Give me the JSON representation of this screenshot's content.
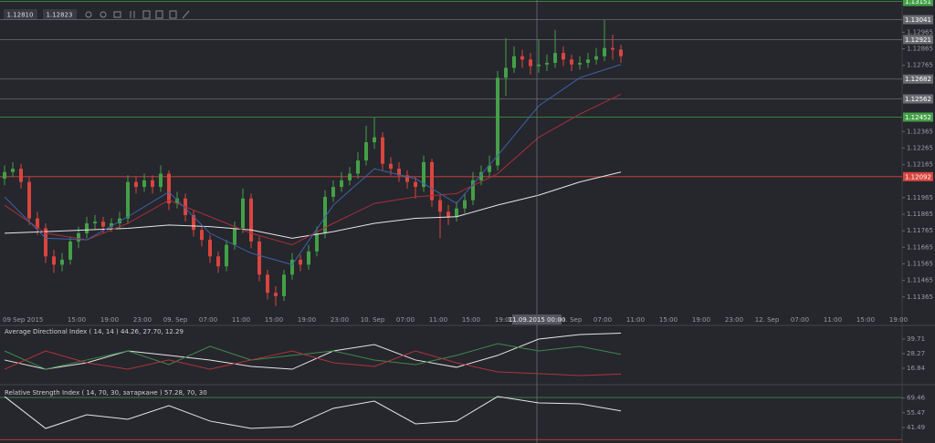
{
  "toolbar": [
    "1.12810",
    "1.12823"
  ],
  "chart_data": [
    {
      "type": "candlestick",
      "open": [
        1.1208,
        1.1212,
        1.1214,
        1.1206,
        1.1184,
        1.1178,
        1.1161,
        1.1156,
        1.1159,
        1.117,
        1.1175,
        1.1181,
        1.1182,
        1.1179,
        1.1181,
        1.1184,
        1.1206,
        1.1203,
        1.1207,
        1.1203,
        1.1211,
        1.1193,
        1.1196,
        1.1186,
        1.1177,
        1.1171,
        1.1161,
        1.1155,
        1.1168,
        1.1178,
        1.1196,
        1.117,
        1.115,
        1.1139,
        1.1137,
        1.115,
        1.1159,
        1.1156,
        1.1164,
        1.1175,
        1.1197,
        1.1203,
        1.1207,
        1.1211,
        1.1219,
        1.123,
        1.1233,
        1.1217,
        1.1214,
        1.121,
        1.1206,
        1.1203,
        1.1218,
        1.1195,
        1.1188,
        1.1185,
        1.119,
        1.1195,
        1.1207,
        1.1212,
        1.1216,
        1.1269,
        1.1275,
        1.1282,
        1.128,
        1.1276,
        1.1277,
        1.1278,
        1.1284,
        1.128,
        1.1277,
        1.1278,
        1.128,
        1.1282,
        1.1287,
        1.1286
      ],
      "high": [
        1.1216,
        1.1218,
        1.1217,
        1.1209,
        1.1188,
        1.1181,
        1.1165,
        1.1163,
        1.1173,
        1.1179,
        1.1185,
        1.1186,
        1.1185,
        1.1184,
        1.1188,
        1.121,
        1.1209,
        1.1211,
        1.121,
        1.1216,
        1.1213,
        1.12,
        1.1199,
        1.1189,
        1.118,
        1.1174,
        1.1164,
        1.1171,
        1.1182,
        1.1202,
        1.1199,
        1.1173,
        1.1153,
        1.1143,
        1.1153,
        1.1163,
        1.1162,
        1.1168,
        1.1179,
        1.1201,
        1.1207,
        1.1212,
        1.1215,
        1.1224,
        1.124,
        1.1245,
        1.1236,
        1.1221,
        1.1218,
        1.1213,
        1.1209,
        1.1222,
        1.122,
        1.1198,
        1.1192,
        1.1194,
        1.1199,
        1.1212,
        1.1216,
        1.1222,
        1.1273,
        1.1293,
        1.1288,
        1.1286,
        1.1284,
        1.1292,
        1.1283,
        1.1298,
        1.1288,
        1.1283,
        1.1282,
        1.1284,
        1.1287,
        1.1304,
        1.1295,
        1.1289
      ],
      "low": [
        1.1204,
        1.1209,
        1.1202,
        1.118,
        1.1174,
        1.1157,
        1.1151,
        1.1152,
        1.1156,
        1.1166,
        1.1172,
        1.1177,
        1.1175,
        1.1176,
        1.1178,
        1.1181,
        1.1199,
        1.12,
        1.1199,
        1.12,
        1.1189,
        1.119,
        1.1182,
        1.1173,
        1.1167,
        1.1157,
        1.1151,
        1.1152,
        1.1165,
        1.1175,
        1.1166,
        1.1146,
        1.1135,
        1.1131,
        1.1134,
        1.1147,
        1.1152,
        1.1153,
        1.1161,
        1.1172,
        1.1194,
        1.12,
        1.1204,
        1.1208,
        1.1216,
        1.1226,
        1.1213,
        1.121,
        1.1206,
        1.1202,
        1.1196,
        1.12,
        1.1191,
        1.1172,
        1.118,
        1.1182,
        1.1187,
        1.1192,
        1.1204,
        1.1209,
        1.1213,
        1.1258,
        1.1272,
        1.1275,
        1.1271,
        1.1272,
        1.1273,
        1.1275,
        1.1276,
        1.1273,
        1.1274,
        1.1275,
        1.1277,
        1.1279,
        1.128,
        1.1278
      ],
      "close": [
        1.1212,
        1.1214,
        1.1206,
        1.1184,
        1.1178,
        1.1161,
        1.1156,
        1.1159,
        1.117,
        1.1175,
        1.1181,
        1.1182,
        1.1179,
        1.1181,
        1.1184,
        1.1206,
        1.1203,
        1.1207,
        1.1203,
        1.1211,
        1.1193,
        1.1196,
        1.1186,
        1.1177,
        1.1171,
        1.1161,
        1.1155,
        1.1168,
        1.1178,
        1.1196,
        1.117,
        1.115,
        1.1139,
        1.1137,
        1.115,
        1.1159,
        1.1156,
        1.1164,
        1.1175,
        1.1197,
        1.1203,
        1.1207,
        1.1211,
        1.1219,
        1.123,
        1.1233,
        1.1217,
        1.1214,
        1.121,
        1.1206,
        1.1203,
        1.1218,
        1.1195,
        1.1188,
        1.1185,
        1.119,
        1.1195,
        1.1207,
        1.1212,
        1.1216,
        1.1269,
        1.1275,
        1.1282,
        1.128,
        1.1276,
        1.1277,
        1.1278,
        1.1284,
        1.128,
        1.1277,
        1.1278,
        1.128,
        1.1282,
        1.1287,
        1.1286,
        1.1282
      ],
      "up_color": "#43a047",
      "down_color": "#d9453f",
      "overlays": [
        {
          "color": "#e6e6e6",
          "x": [
            0,
            5,
            10,
            15,
            20,
            25,
            30,
            35,
            40,
            45,
            50,
            55,
            60,
            65,
            70,
            75
          ],
          "values": [
            1.1175,
            1.1176,
            1.1177,
            1.1178,
            1.118,
            1.1179,
            1.1177,
            1.1172,
            1.1176,
            1.1181,
            1.1184,
            1.1185,
            1.1192,
            1.1198,
            1.1206,
            1.1212
          ]
        },
        {
          "color": "#a8303a",
          "x": [
            0,
            5,
            10,
            15,
            20,
            25,
            30,
            35,
            40,
            45,
            50,
            55,
            60,
            65,
            70,
            75
          ],
          "values": [
            1.1192,
            1.1175,
            1.1171,
            1.1181,
            1.1195,
            1.1185,
            1.1175,
            1.1168,
            1.1181,
            1.1193,
            1.1197,
            1.1199,
            1.1211,
            1.1233,
            1.1247,
            1.1259
          ]
        },
        {
          "color": "#3c63a8",
          "x": [
            0,
            5,
            10,
            15,
            20,
            25,
            30,
            35,
            40,
            45,
            50,
            55,
            60,
            65,
            70,
            75
          ],
          "values": [
            1.1197,
            1.1172,
            1.1171,
            1.1185,
            1.12,
            1.1175,
            1.1163,
            1.1156,
            1.1192,
            1.1214,
            1.1208,
            1.1193,
            1.1222,
            1.1252,
            1.1269,
            1.1277
          ]
        }
      ],
      "ylim": [
        1.1127,
        1.1316
      ],
      "yticks": [
        1.11365,
        1.11465,
        1.11565,
        1.11665,
        1.11765,
        1.11865,
        1.11965,
        1.12165,
        1.12265,
        1.12365,
        1.12765,
        1.12865,
        1.12965
      ],
      "levels": [
        {
          "value": 1.13151,
          "color": "#43a047"
        },
        {
          "value": 1.13041,
          "color": "#6b6b72"
        },
        {
          "value": 1.12921,
          "color": "#6b6b72"
        },
        {
          "value": 1.12682,
          "color": "#6b6b72"
        },
        {
          "value": 1.12562,
          "color": "#6b6b72"
        },
        {
          "value": 1.12452,
          "color": "#43a047"
        },
        {
          "value": 1.12092,
          "color": "#d9453f"
        }
      ],
      "xtick_labels": [
        "09 Sep 2015",
        "15:00",
        "19:00",
        "23:00",
        "09. Sep",
        "07:00",
        "11:00",
        "15:00",
        "19:00",
        "23:00",
        "10. Sep",
        "07:00",
        "11:00",
        "15:00",
        "19:00",
        null,
        "11. Sep",
        "07:00",
        "11:00",
        "15:00",
        "19:00",
        "23:00",
        "12. Sep",
        "07:00",
        "11:00",
        "15:00",
        "19:00"
      ],
      "crosshair": "11.09.2015 00:00"
    },
    {
      "type": "line",
      "title": "Average Directional Index ( 14, 14 ) 44.26, 27.70, 12.29",
      "x": [
        0,
        5,
        10,
        15,
        20,
        25,
        30,
        35,
        40,
        45,
        50,
        55,
        60,
        65,
        70,
        75
      ],
      "series": [
        {
          "color": "#e6e6e6",
          "values": [
            23.3,
            16.1,
            21.1,
            30.4,
            26.9,
            23.3,
            18.3,
            16.1,
            30.4,
            35.4,
            23.3,
            17.6,
            26.9,
            39.7,
            43.3,
            44.3
          ]
        },
        {
          "color": "#3f8a4a",
          "values": [
            30.4,
            16.1,
            23.3,
            30.4,
            19.7,
            34.0,
            23.3,
            26.9,
            30.4,
            23.3,
            19.7,
            26.9,
            36.1,
            30.4,
            34.0,
            27.7
          ]
        },
        {
          "color": "#b0343a",
          "values": [
            16.1,
            30.4,
            21.1,
            16.1,
            23.3,
            16.1,
            23.3,
            30.4,
            21.1,
            18.3,
            30.4,
            21.1,
            14.0,
            12.6,
            11.1,
            12.3
          ]
        }
      ],
      "ylim": [
        5.4,
        49.7
      ],
      "yticks": [
        39.71,
        28.27,
        16.84
      ]
    },
    {
      "type": "line",
      "title": "Relative Strength Index ( 14, 70, 30, затаркане ) 57.28, 70, 30",
      "x": [
        0,
        5,
        10,
        15,
        20,
        25,
        30,
        35,
        40,
        45,
        50,
        55,
        60,
        65,
        70,
        75
      ],
      "series": [
        {
          "color": "#e6e6e6",
          "values": [
            70.9,
            40.6,
            53.6,
            49.3,
            62.3,
            47.6,
            40.6,
            42.4,
            59.7,
            66.6,
            45.0,
            47.6,
            70.9,
            64.9,
            64.0,
            57.3
          ]
        }
      ],
      "levels": [
        {
          "value": 70,
          "color": "#3f8a4a"
        },
        {
          "value": 30,
          "color": "#d9453f"
        }
      ],
      "ylim": [
        28.5,
        79.6
      ],
      "yticks": [
        69.46,
        55.47,
        41.49
      ]
    }
  ]
}
